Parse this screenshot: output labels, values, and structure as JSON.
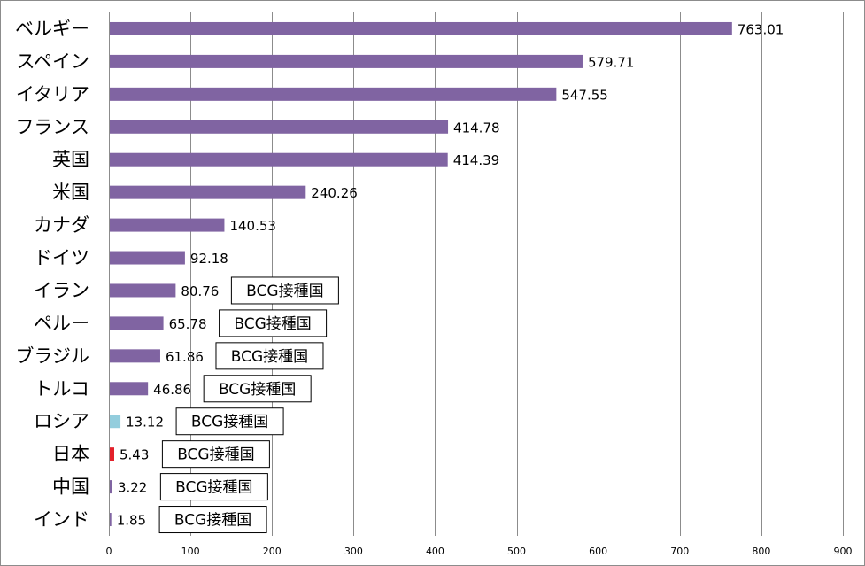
{
  "chart_data": {
    "type": "bar",
    "orientation": "horizontal",
    "categories": [
      "ベルギー",
      "スペイン",
      "イタリア",
      "フランス",
      "英国",
      "米国",
      "カナダ",
      "ドイツ",
      "イラン",
      "ペルー",
      "ブラジル",
      "トルコ",
      "ロシア",
      "日本",
      "中国",
      "インド"
    ],
    "values": [
      763.01,
      579.71,
      547.55,
      414.78,
      414.39,
      240.26,
      140.53,
      92.18,
      80.76,
      65.78,
      61.86,
      46.86,
      13.12,
      5.43,
      3.22,
      1.85
    ],
    "value_labels": [
      "763.01",
      "579.71",
      "547.55",
      "414.78",
      "414.39",
      "240.26",
      "140.53",
      "92.18",
      "80.76",
      "65.78",
      "61.86",
      "46.86",
      "13.12",
      "5.43",
      "3.22",
      "1.85"
    ],
    "bar_colors": [
      "#8064a2",
      "#8064a2",
      "#8064a2",
      "#8064a2",
      "#8064a2",
      "#8064a2",
      "#8064a2",
      "#8064a2",
      "#8064a2",
      "#8064a2",
      "#8064a2",
      "#8064a2",
      "#93cddd",
      "#e3202a",
      "#8064a2",
      "#8064a2"
    ],
    "annotations": [
      "",
      "",
      "",
      "",
      "",
      "",
      "",
      "",
      "BCG接種国",
      "BCG接種国",
      "BCG接種国",
      "BCG接種国",
      "BCG接種国",
      "BCG接種国",
      "BCG接種国",
      "BCG接種国"
    ],
    "xlim": [
      0,
      900
    ],
    "xticks": [
      0,
      100,
      200,
      300,
      400,
      500,
      600,
      700,
      800,
      900
    ],
    "grid": "vertical",
    "legend": "none"
  }
}
